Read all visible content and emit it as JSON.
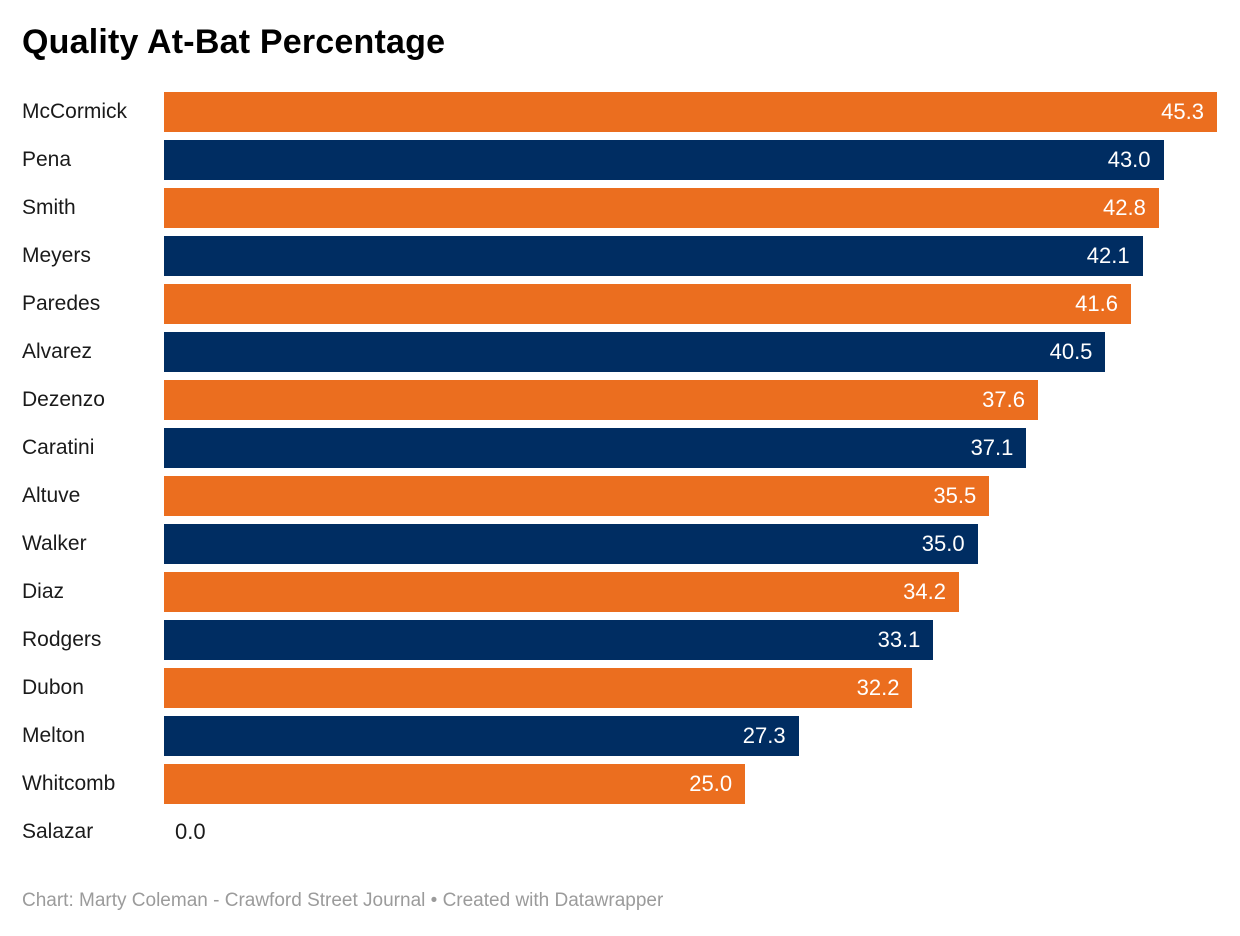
{
  "title": "Quality At-Bat Percentage",
  "footer": "Chart: Marty Coleman - Crawford Street Journal • Created with Datawrapper",
  "colors": {
    "orange": "#EB6E1F",
    "navy": "#002D62",
    "label_text": "#1a1a1a",
    "value_text_inside": "#ffffff",
    "footer_text": "#9b9b9b",
    "background": "#ffffff"
  },
  "chart_data": {
    "type": "bar",
    "orientation": "horizontal",
    "title": "Quality At-Bat Percentage",
    "xlabel": "",
    "ylabel": "",
    "xlim": [
      0,
      45.3
    ],
    "grid": false,
    "legend": false,
    "categories": [
      "McCormick",
      "Pena",
      "Smith",
      "Meyers",
      "Paredes",
      "Alvarez",
      "Dezenzo",
      "Caratini",
      "Altuve",
      "Walker",
      "Diaz",
      "Rodgers",
      "Dubon",
      "Melton",
      "Whitcomb",
      "Salazar"
    ],
    "values": [
      45.3,
      43.0,
      42.8,
      42.1,
      41.6,
      40.5,
      37.6,
      37.1,
      35.5,
      35.0,
      34.2,
      33.1,
      32.2,
      27.3,
      25.0,
      0.0
    ],
    "value_labels": [
      "45.3",
      "43.0",
      "42.8",
      "42.1",
      "41.6",
      "40.5",
      "37.6",
      "37.1",
      "35.5",
      "35.0",
      "34.2",
      "33.1",
      "32.2",
      "27.3",
      "25.0",
      "0.0"
    ],
    "bar_color_pattern": [
      "#EB6E1F",
      "#002D62"
    ],
    "value_label_position": "inside-end"
  }
}
